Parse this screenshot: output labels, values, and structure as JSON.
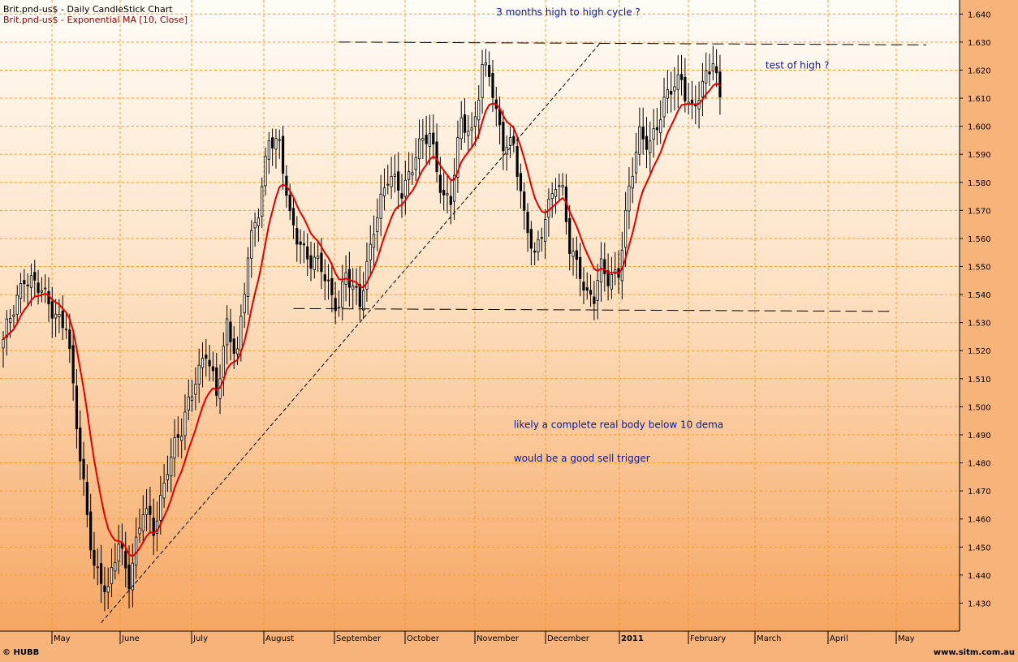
{
  "chart_data": {
    "type": "candlestick",
    "title": "Brit.pnd-us$ - Daily CandleStick Chart",
    "indicator_label": "Brit.pnd-us$ - Exponential MA [10, Close]",
    "ylim": [
      1.42,
      1.645
    ],
    "y_ticks": [
      "1.430",
      "1.440",
      "1.450",
      "1.460",
      "1.470",
      "1.480",
      "1.490",
      "1.500",
      "1.510",
      "1.520",
      "1.530",
      "1.540",
      "1.550",
      "1.560",
      "1.570",
      "1.580",
      "1.590",
      "1.600",
      "1.610",
      "1.620",
      "1.630",
      "1.640"
    ],
    "x_months": [
      {
        "label": "May",
        "bold": false
      },
      {
        "label": "June",
        "bold": false
      },
      {
        "label": "July",
        "bold": false
      },
      {
        "label": "August",
        "bold": false
      },
      {
        "label": "September",
        "bold": false
      },
      {
        "label": "October",
        "bold": false
      },
      {
        "label": "November",
        "bold": false
      },
      {
        "label": "December",
        "bold": false
      },
      {
        "label": "2011",
        "bold": true
      },
      {
        "label": "February",
        "bold": false
      },
      {
        "label": "March",
        "bold": false
      },
      {
        "label": "April",
        "bold": false
      },
      {
        "label": "May",
        "bold": false
      }
    ],
    "close_anchors": [
      [
        0,
        1.522
      ],
      [
        6,
        1.548
      ],
      [
        12,
        1.538
      ],
      [
        18,
        1.53
      ],
      [
        22,
        1.48
      ],
      [
        26,
        1.445
      ],
      [
        30,
        1.432
      ],
      [
        33,
        1.452
      ],
      [
        36,
        1.44
      ],
      [
        40,
        1.462
      ],
      [
        43,
        1.456
      ],
      [
        47,
        1.48
      ],
      [
        51,
        1.49
      ],
      [
        55,
        1.512
      ],
      [
        58,
        1.52
      ],
      [
        61,
        1.502
      ],
      [
        64,
        1.53
      ],
      [
        67,
        1.52
      ],
      [
        70,
        1.552
      ],
      [
        73,
        1.57
      ],
      [
        76,
        1.598
      ],
      [
        79,
        1.592
      ],
      [
        82,
        1.566
      ],
      [
        85,
        1.56
      ],
      [
        88,
        1.552
      ],
      [
        91,
        1.548
      ],
      [
        94,
        1.54
      ],
      [
        96,
        1.538
      ],
      [
        98,
        1.548
      ],
      [
        100,
        1.54
      ],
      [
        102,
        1.536
      ],
      [
        106,
        1.566
      ],
      [
        110,
        1.58
      ],
      [
        114,
        1.578
      ],
      [
        118,
        1.59
      ],
      [
        122,
        1.596
      ],
      [
        126,
        1.576
      ],
      [
        128,
        1.574
      ],
      [
        131,
        1.6
      ],
      [
        134,
        1.598
      ],
      [
        137,
        1.622
      ],
      [
        139,
        1.618
      ],
      [
        141,
        1.602
      ],
      [
        143,
        1.594
      ],
      [
        146,
        1.596
      ],
      [
        149,
        1.566
      ],
      [
        152,
        1.552
      ],
      [
        155,
        1.57
      ],
      [
        158,
        1.58
      ],
      [
        160,
        1.574
      ],
      [
        162,
        1.556
      ],
      [
        165,
        1.55
      ],
      [
        167,
        1.54
      ],
      [
        169,
        1.538
      ],
      [
        171,
        1.548
      ],
      [
        173,
        1.546
      ],
      [
        176,
        1.55
      ],
      [
        179,
        1.576
      ],
      [
        182,
        1.596
      ],
      [
        185,
        1.596
      ],
      [
        188,
        1.604
      ],
      [
        191,
        1.612
      ],
      [
        194,
        1.618
      ],
      [
        197,
        1.606
      ],
      [
        200,
        1.612
      ],
      [
        203,
        1.624
      ],
      [
        205,
        1.612
      ]
    ],
    "ema_period": 10,
    "annotations": [
      {
        "text": "3 months high to high cycle ?",
        "x_index": 141,
        "price": 1.6395
      },
      {
        "text": "test of high ?",
        "x_index": 218,
        "price": 1.6205
      },
      {
        "text": "likely a complete real body below 10 dema",
        "x_index": 146,
        "price": 1.4925
      },
      {
        "text": "would be a good sell trigger",
        "x_index": 146,
        "price": 1.4805
      }
    ],
    "trend_lines": [
      {
        "style": "dashed",
        "from": [
          83,
          1.535
        ],
        "to": [
          254,
          1.534
        ]
      },
      {
        "style": "dashed",
        "from": [
          96,
          1.63
        ],
        "to": [
          264,
          1.629
        ]
      },
      {
        "style": "dashed-fine",
        "from": [
          28,
          1.423
        ],
        "to": [
          171,
          1.63
        ]
      }
    ],
    "grid": true,
    "footer_left": "© HUBB",
    "footer_right": "www.sitm.com.au"
  }
}
